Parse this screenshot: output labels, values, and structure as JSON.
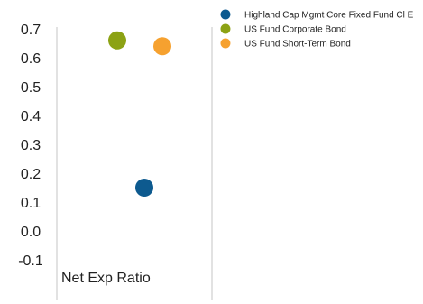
{
  "chart_data": {
    "type": "scatter",
    "category_label": "Net Exp Ratio",
    "ylim": [
      -0.1,
      0.7
    ],
    "yticks": [
      "0.7",
      "0.6",
      "0.5",
      "0.4",
      "0.3",
      "0.2",
      "0.1",
      "0.0",
      "-0.1"
    ],
    "grid": "vertical lines only",
    "legend_position": "top-right",
    "series": [
      {
        "name": "Highland Cap Mgmt Core Fixed Fund Cl E",
        "value": 0.15,
        "color": "#0d5a8f"
      },
      {
        "name": "US Fund Corporate Bond",
        "value": 0.66,
        "color": "#8ca214"
      },
      {
        "name": "US Fund Short-Term Bond",
        "value": 0.64,
        "color": "#f6a12f"
      }
    ]
  }
}
